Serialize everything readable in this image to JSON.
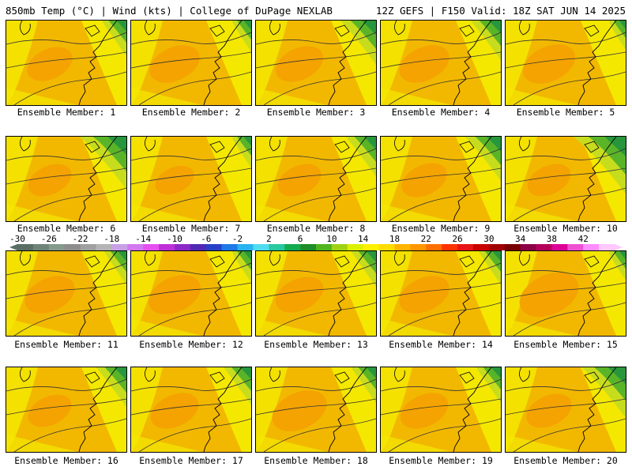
{
  "header": {
    "left": "850mb Temp (°C) | Wind (kts) | College of DuPage NEXLAB",
    "right": "12Z GEFS | F150 Valid: 18Z SAT JUN 14 2025"
  },
  "members": [
    {
      "label": "Ensemble Member: 1",
      "warm": 0.35,
      "cool": 0.45
    },
    {
      "label": "Ensemble Member: 2",
      "warm": 0.45,
      "cool": 0.35
    },
    {
      "label": "Ensemble Member: 3",
      "warm": 0.4,
      "cool": 0.65
    },
    {
      "label": "Ensemble Member: 4",
      "warm": 0.45,
      "cool": 0.55
    },
    {
      "label": "Ensemble Member: 5",
      "warm": 0.5,
      "cool": 0.3
    },
    {
      "label": "Ensemble Member: 6",
      "warm": 0.3,
      "cool": 0.85
    },
    {
      "label": "Ensemble Member: 7",
      "warm": 0.2,
      "cool": 0.35
    },
    {
      "label": "Ensemble Member: 8",
      "warm": 0.3,
      "cool": 0.55
    },
    {
      "label": "Ensemble Member: 9",
      "warm": 0.35,
      "cool": 0.65
    },
    {
      "label": "Ensemble Member: 10",
      "warm": 0.3,
      "cool": 0.95
    },
    {
      "label": "Ensemble Member: 11",
      "warm": 0.45,
      "cool": 0.4
    },
    {
      "label": "Ensemble Member: 12",
      "warm": 0.5,
      "cool": 0.35
    },
    {
      "label": "Ensemble Member: 13",
      "warm": 0.4,
      "cool": 0.45
    },
    {
      "label": "Ensemble Member: 14",
      "warm": 0.45,
      "cool": 0.4
    },
    {
      "label": "Ensemble Member: 15",
      "warm": 0.65,
      "cool": 0.3
    },
    {
      "label": "Ensemble Member: 16",
      "warm": 0.3,
      "cool": 0.55
    },
    {
      "label": "Ensemble Member: 17",
      "warm": 0.4,
      "cool": 0.5
    },
    {
      "label": "Ensemble Member: 18",
      "warm": 0.55,
      "cool": 0.45
    },
    {
      "label": "Ensemble Member: 19",
      "warm": 0.4,
      "cool": 0.45
    },
    {
      "label": "Ensemble Member: 20",
      "warm": 0.35,
      "cool": 0.8
    }
  ],
  "colorbar": {
    "ticks": [
      "-30",
      "-26",
      "-22",
      "-18",
      "-14",
      "-10",
      "-6",
      "-2",
      "2",
      "6",
      "10",
      "14",
      "18",
      "22",
      "26",
      "30",
      "34",
      "38",
      "42"
    ],
    "colors": [
      "#5a6e64",
      "#6e8478",
      "#849a8c",
      "#8c8c8c",
      "#a0a0a0",
      "#b4b4b4",
      "#c8a0e6",
      "#d278f0",
      "#e650f0",
      "#c030d8",
      "#8c28c8",
      "#5028b4",
      "#2840c8",
      "#1e78e6",
      "#28b4f0",
      "#50dcf0",
      "#28c8a0",
      "#14aa50",
      "#1e8c28",
      "#50b41e",
      "#a0d214",
      "#dcf000",
      "#fff000",
      "#ffdc00",
      "#ffb400",
      "#ff9600",
      "#ff6e00",
      "#ff3200",
      "#e61414",
      "#c80000",
      "#a00000",
      "#780000",
      "#8c0046",
      "#b4005a",
      "#dc0096",
      "#f050d2",
      "#ff8cff",
      "#ffc8ff"
    ]
  },
  "colors": {
    "warm": "#f2b800",
    "hot": "#f4a300",
    "yellow": "#f4e800",
    "lime": "#c8dc1e",
    "green": "#5ab428",
    "dark_green": "#28963c",
    "deep_green": "#14a050"
  }
}
